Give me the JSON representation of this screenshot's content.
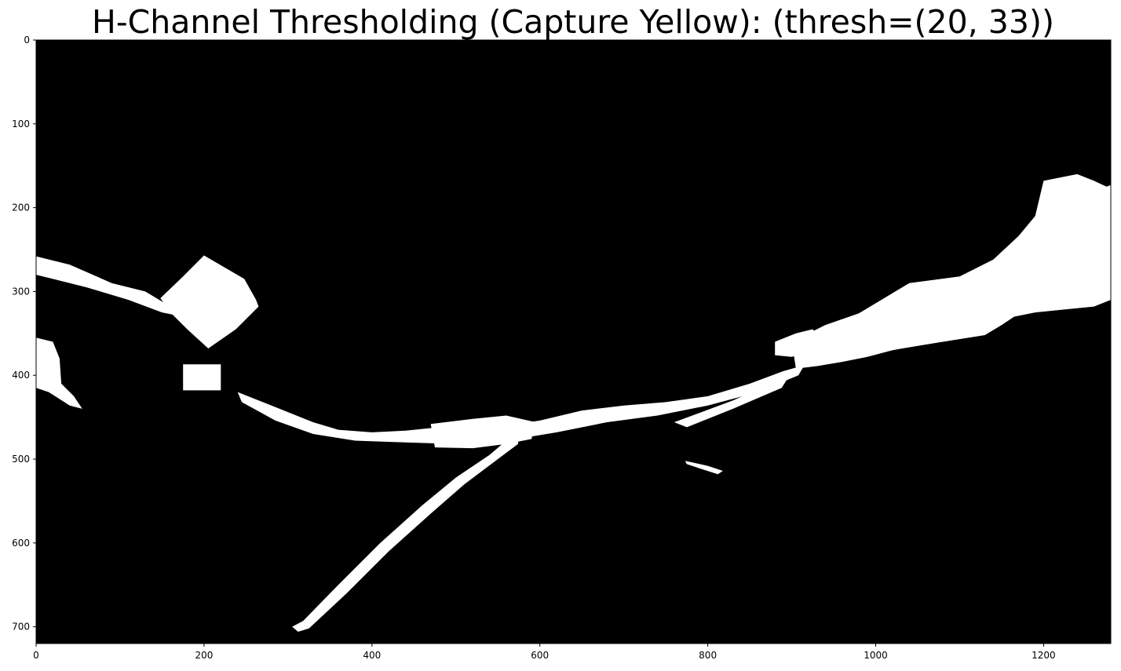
{
  "chart_data": {
    "type": "heatmap",
    "title": "H-Channel Thresholding (Capture Yellow): (thresh=(20, 33))",
    "xlabel": "",
    "ylabel": "",
    "xlim": [
      0,
      1280
    ],
    "ylim": [
      720,
      0
    ],
    "x_ticks": [
      0,
      200,
      400,
      600,
      800,
      1000,
      1200
    ],
    "y_ticks": [
      0,
      100,
      200,
      300,
      400,
      500,
      600,
      700
    ],
    "x_tick_labels": [
      "0",
      "200",
      "400",
      "600",
      "800",
      "1000",
      "1200"
    ],
    "y_tick_labels": [
      "0",
      "100",
      "200",
      "300",
      "400",
      "500",
      "600",
      "700"
    ],
    "colormap": "binary (0 = black, 1 = white)",
    "background_color": "#000000",
    "foreground_color": "#ffffff",
    "grid": false,
    "white_regions": [
      {
        "name": "left-hillside-strip",
        "points": [
          [
            0,
            258
          ],
          [
            40,
            268
          ],
          [
            90,
            290
          ],
          [
            130,
            300
          ],
          [
            160,
            318
          ],
          [
            175,
            330
          ],
          [
            150,
            325
          ],
          [
            110,
            310
          ],
          [
            60,
            295
          ],
          [
            20,
            285
          ],
          [
            0,
            280
          ]
        ]
      },
      {
        "name": "left-bush",
        "points": [
          [
            0,
            355
          ],
          [
            20,
            360
          ],
          [
            28,
            380
          ],
          [
            30,
            410
          ],
          [
            45,
            425
          ],
          [
            55,
            440
          ],
          [
            40,
            436
          ],
          [
            15,
            420
          ],
          [
            0,
            415
          ]
        ]
      },
      {
        "name": "road-sign-diamond",
        "points": [
          [
            200,
            257
          ],
          [
            248,
            285
          ],
          [
            262,
            310
          ],
          [
            265,
            318
          ],
          [
            238,
            345
          ],
          [
            205,
            368
          ],
          [
            180,
            345
          ],
          [
            160,
            325
          ],
          [
            148,
            308
          ],
          [
            175,
            282
          ]
        ]
      },
      {
        "name": "road-sign-plate",
        "points": [
          [
            175,
            387
          ],
          [
            220,
            387
          ],
          [
            220,
            418
          ],
          [
            175,
            418
          ]
        ]
      },
      {
        "name": "midground-band",
        "points": [
          [
            240,
            420
          ],
          [
            290,
            440
          ],
          [
            330,
            456
          ],
          [
            360,
            465
          ],
          [
            400,
            468
          ],
          [
            440,
            466
          ],
          [
            480,
            462
          ],
          [
            520,
            466
          ],
          [
            560,
            460
          ],
          [
            600,
            454
          ],
          [
            650,
            442
          ],
          [
            700,
            436
          ],
          [
            750,
            432
          ],
          [
            800,
            425
          ],
          [
            850,
            410
          ],
          [
            890,
            395
          ],
          [
            915,
            388
          ],
          [
            908,
            400
          ],
          [
            860,
            420
          ],
          [
            800,
            436
          ],
          [
            740,
            448
          ],
          [
            680,
            456
          ],
          [
            620,
            468
          ],
          [
            560,
            478
          ],
          [
            500,
            482
          ],
          [
            440,
            480
          ],
          [
            380,
            478
          ],
          [
            330,
            470
          ],
          [
            285,
            454
          ],
          [
            245,
            432
          ]
        ]
      },
      {
        "name": "center-white-mound",
        "points": [
          [
            470,
            458
          ],
          [
            520,
            452
          ],
          [
            560,
            448
          ],
          [
            595,
            456
          ],
          [
            590,
            476
          ],
          [
            560,
            482
          ],
          [
            520,
            487
          ],
          [
            475,
            486
          ]
        ]
      },
      {
        "name": "right-lane-edge-streak",
        "points": [
          [
            760,
            456
          ],
          [
            830,
            430
          ],
          [
            885,
            405
          ],
          [
            895,
            404
          ],
          [
            888,
            415
          ],
          [
            830,
            440
          ],
          [
            775,
            462
          ]
        ]
      },
      {
        "name": "right-hillside-band",
        "points": [
          [
            900,
            360
          ],
          [
            940,
            340
          ],
          [
            980,
            326
          ],
          [
            1010,
            308
          ],
          [
            1040,
            290
          ],
          [
            1070,
            286
          ],
          [
            1100,
            282
          ],
          [
            1140,
            262
          ],
          [
            1170,
            234
          ],
          [
            1190,
            210
          ],
          [
            1200,
            168
          ],
          [
            1240,
            160
          ],
          [
            1260,
            168
          ],
          [
            1275,
            175
          ],
          [
            1280,
            173
          ],
          [
            1280,
            310
          ],
          [
            1260,
            318
          ],
          [
            1220,
            322
          ],
          [
            1190,
            325
          ],
          [
            1165,
            330
          ],
          [
            1150,
            340
          ],
          [
            1130,
            352
          ],
          [
            1105,
            356
          ],
          [
            1080,
            360
          ],
          [
            1050,
            365
          ],
          [
            1020,
            370
          ],
          [
            990,
            378
          ],
          [
            960,
            384
          ],
          [
            930,
            389
          ],
          [
            905,
            392
          ]
        ]
      },
      {
        "name": "right-bush-lower",
        "points": [
          [
            880,
            360
          ],
          [
            905,
            350
          ],
          [
            925,
            345
          ],
          [
            935,
            358
          ],
          [
            920,
            372
          ],
          [
            900,
            378
          ],
          [
            880,
            376
          ]
        ]
      },
      {
        "name": "far-right-bushes",
        "points": [
          [
            1230,
            235
          ],
          [
            1255,
            228
          ],
          [
            1272,
            220
          ],
          [
            1280,
            215
          ],
          [
            1280,
            270
          ],
          [
            1265,
            280
          ],
          [
            1250,
            300
          ],
          [
            1235,
            290
          ],
          [
            1225,
            270
          ]
        ]
      },
      {
        "name": "left-lane-line",
        "points": [
          [
            305,
            700
          ],
          [
            318,
            693
          ],
          [
            360,
            650
          ],
          [
            410,
            600
          ],
          [
            460,
            555
          ],
          [
            500,
            522
          ],
          [
            540,
            495
          ],
          [
            560,
            478
          ],
          [
            568,
            472
          ],
          [
            575,
            470
          ],
          [
            574,
            482
          ],
          [
            550,
            500
          ],
          [
            510,
            530
          ],
          [
            470,
            565
          ],
          [
            420,
            610
          ],
          [
            370,
            660
          ],
          [
            325,
            702
          ],
          [
            312,
            706
          ]
        ]
      },
      {
        "name": "right-dashed-mark",
        "points": [
          [
            773,
            502
          ],
          [
            800,
            508
          ],
          [
            818,
            514
          ],
          [
            812,
            518
          ],
          [
            793,
            512
          ],
          [
            775,
            506
          ]
        ]
      }
    ]
  }
}
